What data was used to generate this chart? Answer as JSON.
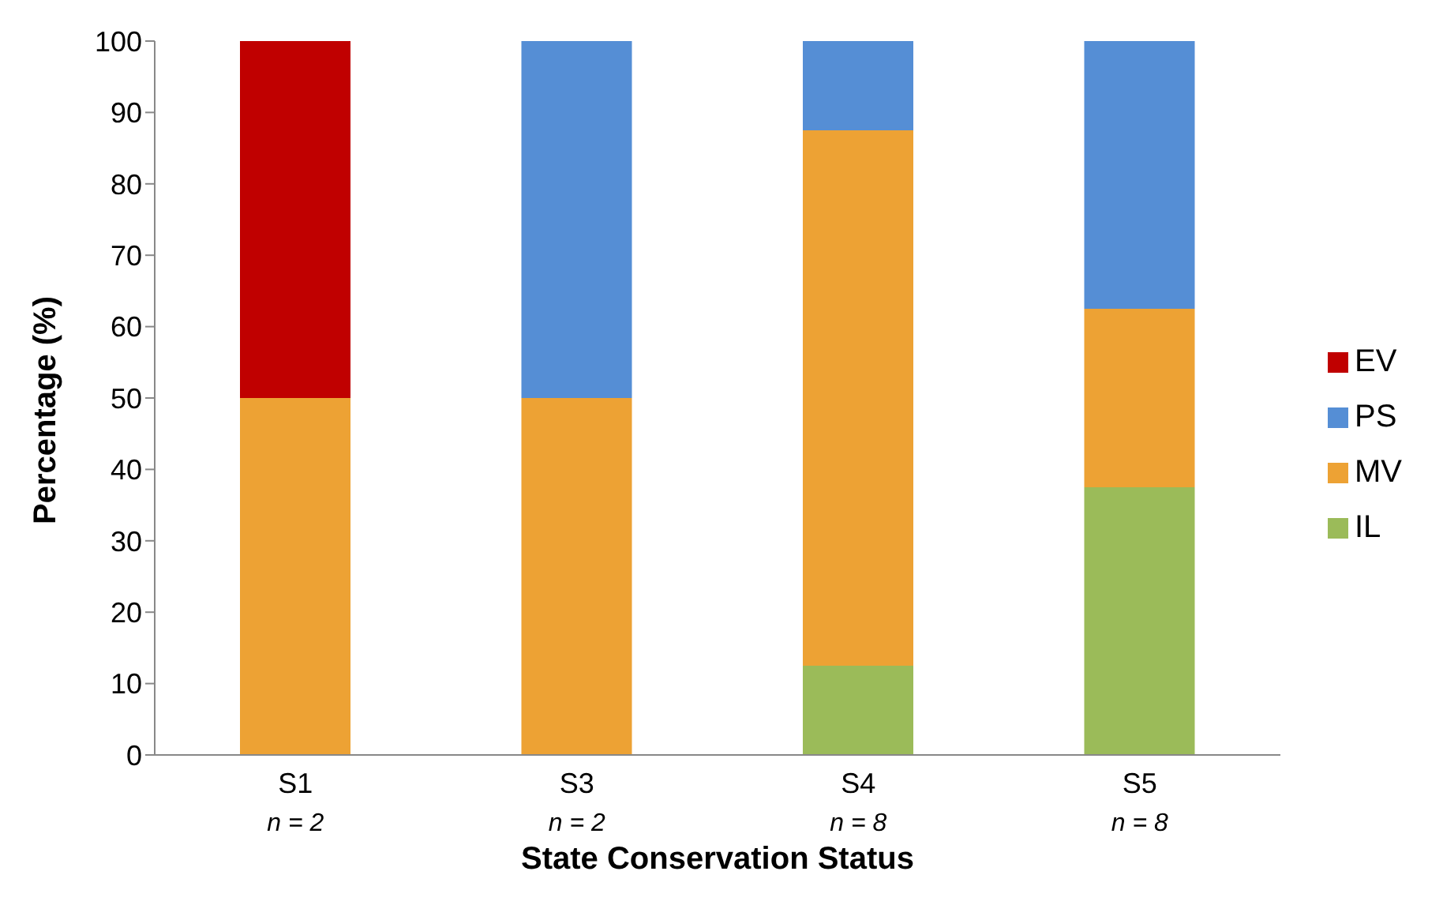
{
  "chart_data": {
    "type": "bar",
    "stacked": true,
    "xlabel": "State Conservation Status",
    "ylabel": "Percentage (%)",
    "categories": [
      "S1",
      "S3",
      "S4",
      "S5"
    ],
    "annotations": [
      "n = 2",
      "n = 2",
      "n = 8",
      "n = 8"
    ],
    "series": [
      {
        "name": "IL",
        "color": "#9bbb59",
        "values": [
          0,
          0,
          12.5,
          37.5
        ]
      },
      {
        "name": "MV",
        "color": "#eda234",
        "values": [
          50,
          50,
          75,
          25
        ]
      },
      {
        "name": "PS",
        "color": "#558ed5",
        "values": [
          0,
          50,
          12.5,
          37.5
        ]
      },
      {
        "name": "EV",
        "color": "#c00000",
        "values": [
          50,
          0,
          0,
          0
        ]
      }
    ],
    "ylim": [
      0,
      100
    ],
    "yticks": [
      0,
      10,
      20,
      30,
      40,
      50,
      60,
      70,
      80,
      90,
      100
    ],
    "grid": false,
    "legend": "right"
  }
}
